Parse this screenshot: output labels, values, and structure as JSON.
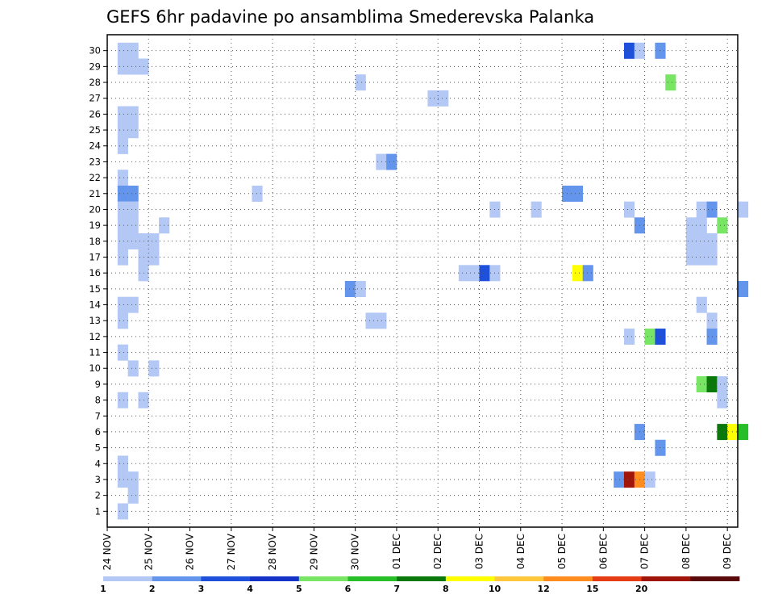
{
  "title": "GEFS 6hr padavine po ansamblima Smederevska Palanka",
  "chart_data": {
    "type": "heatmap",
    "title": "GEFS 6hr padavine po ansamblima Smederevska Palanka",
    "x_ticks": [
      "24 NOV",
      "25 NOV",
      "26 NOV",
      "27 NOV",
      "28 NOV",
      "29 NOV",
      "30 NOV",
      "01 DEC",
      "02 DEC",
      "03 DEC",
      "04 DEC",
      "05 DEC",
      "06 DEC",
      "07 DEC",
      "08 DEC",
      "09 DEC"
    ],
    "y_ticks": [
      "1",
      "2",
      "3",
      "4",
      "5",
      "6",
      "7",
      "8",
      "9",
      "10",
      "11",
      "12",
      "13",
      "14",
      "15",
      "16",
      "17",
      "18",
      "19",
      "20",
      "21",
      "22",
      "23",
      "24",
      "25",
      "26",
      "27",
      "28",
      "29",
      "30"
    ],
    "time_step_hours": 6,
    "x_range_days": [
      0,
      15.25
    ],
    "y_range": [
      0,
      31
    ],
    "grid": "dotted",
    "colorbar": {
      "levels": [
        "1",
        "2",
        "3",
        "4",
        "5",
        "6",
        "7",
        "8",
        "10",
        "12",
        "15",
        "20"
      ],
      "colors": [
        "#b4c8f5",
        "#6495ed",
        "#1e50dc",
        "#1432c8",
        "#78e664",
        "#28be28",
        "#0a780a",
        "#ffff00",
        "#ffc83c",
        "#ff8c1e",
        "#e63c14",
        "#a0140a",
        "#5a0a0a"
      ]
    },
    "cells": [
      {
        "m": 30,
        "d": 0.25,
        "c": 0
      },
      {
        "m": 30,
        "d": 0.5,
        "c": 0
      },
      {
        "m": 30,
        "d": 12.5,
        "c": 2
      },
      {
        "m": 30,
        "d": 12.75,
        "c": 0
      },
      {
        "m": 30,
        "d": 13.25,
        "c": 1
      },
      {
        "m": 29,
        "d": 0.25,
        "c": 0
      },
      {
        "m": 29,
        "d": 0.5,
        "c": 0
      },
      {
        "m": 29,
        "d": 0.75,
        "c": 0
      },
      {
        "m": 28,
        "d": 6,
        "c": 0
      },
      {
        "m": 28,
        "d": 13.5,
        "c": 4
      },
      {
        "m": 27,
        "d": 7.75,
        "c": 0
      },
      {
        "m": 27,
        "d": 8,
        "c": 0
      },
      {
        "m": 26,
        "d": 0.25,
        "c": 0
      },
      {
        "m": 26,
        "d": 0.5,
        "c": 0
      },
      {
        "m": 25,
        "d": 0.25,
        "c": 0
      },
      {
        "m": 25,
        "d": 0.5,
        "c": 0
      },
      {
        "m": 24,
        "d": 0.25,
        "c": 0
      },
      {
        "m": 23,
        "d": 6.5,
        "c": 0
      },
      {
        "m": 23,
        "d": 6.75,
        "c": 1
      },
      {
        "m": 22,
        "d": 0.25,
        "c": 0
      },
      {
        "m": 21,
        "d": 0.25,
        "c": 1
      },
      {
        "m": 21,
        "d": 0.5,
        "c": 1
      },
      {
        "m": 21,
        "d": 3.5,
        "c": 0
      },
      {
        "m": 21,
        "d": 11,
        "c": 1
      },
      {
        "m": 21,
        "d": 11.25,
        "c": 1
      },
      {
        "m": 20,
        "d": 0.25,
        "c": 0
      },
      {
        "m": 20,
        "d": 0.5,
        "c": 0
      },
      {
        "m": 20,
        "d": 9.25,
        "c": 0
      },
      {
        "m": 20,
        "d": 10.25,
        "c": 0
      },
      {
        "m": 20,
        "d": 12.5,
        "c": 0
      },
      {
        "m": 20,
        "d": 14.25,
        "c": 0
      },
      {
        "m": 20,
        "d": 14.5,
        "c": 1
      },
      {
        "m": 20,
        "d": 15.25,
        "c": 0
      },
      {
        "m": 19,
        "d": 0.25,
        "c": 0
      },
      {
        "m": 19,
        "d": 0.5,
        "c": 0
      },
      {
        "m": 19,
        "d": 1.25,
        "c": 0
      },
      {
        "m": 19,
        "d": 12.75,
        "c": 1
      },
      {
        "m": 19,
        "d": 14,
        "c": 0
      },
      {
        "m": 19,
        "d": 14.25,
        "c": 0
      },
      {
        "m": 19,
        "d": 14.75,
        "c": 4
      },
      {
        "m": 18,
        "d": 0.25,
        "c": 0
      },
      {
        "m": 18,
        "d": 0.5,
        "c": 0
      },
      {
        "m": 18,
        "d": 0.75,
        "c": 0
      },
      {
        "m": 18,
        "d": 1,
        "c": 0
      },
      {
        "m": 18,
        "d": 14,
        "c": 0
      },
      {
        "m": 18,
        "d": 14.25,
        "c": 0
      },
      {
        "m": 18,
        "d": 14.5,
        "c": 0
      },
      {
        "m": 17,
        "d": 0.25,
        "c": 0
      },
      {
        "m": 17,
        "d": 0.75,
        "c": 0
      },
      {
        "m": 17,
        "d": 1,
        "c": 0
      },
      {
        "m": 17,
        "d": 14,
        "c": 0
      },
      {
        "m": 17,
        "d": 14.25,
        "c": 0
      },
      {
        "m": 17,
        "d": 14.5,
        "c": 0
      },
      {
        "m": 16,
        "d": 0.75,
        "c": 0
      },
      {
        "m": 16,
        "d": 8.5,
        "c": 0
      },
      {
        "m": 16,
        "d": 8.75,
        "c": 0
      },
      {
        "m": 16,
        "d": 9,
        "c": 2
      },
      {
        "m": 16,
        "d": 9.25,
        "c": 0
      },
      {
        "m": 16,
        "d": 11.25,
        "c": 7
      },
      {
        "m": 16,
        "d": 11.5,
        "c": 1
      },
      {
        "m": 15,
        "d": 5.75,
        "c": 1
      },
      {
        "m": 15,
        "d": 6,
        "c": 0
      },
      {
        "m": 15,
        "d": 15.25,
        "c": 1
      },
      {
        "m": 14,
        "d": 0.25,
        "c": 0
      },
      {
        "m": 14,
        "d": 0.5,
        "c": 0
      },
      {
        "m": 14,
        "d": 14.25,
        "c": 0
      },
      {
        "m": 13,
        "d": 0.25,
        "c": 0
      },
      {
        "m": 13,
        "d": 6.25,
        "c": 0
      },
      {
        "m": 13,
        "d": 6.5,
        "c": 0
      },
      {
        "m": 13,
        "d": 14.5,
        "c": 0
      },
      {
        "m": 12,
        "d": 12.5,
        "c": 0
      },
      {
        "m": 12,
        "d": 13,
        "c": 4
      },
      {
        "m": 12,
        "d": 13.25,
        "c": 2
      },
      {
        "m": 12,
        "d": 14.5,
        "c": 1
      },
      {
        "m": 11,
        "d": 0.25,
        "c": 0
      },
      {
        "m": 10,
        "d": 0.5,
        "c": 0
      },
      {
        "m": 10,
        "d": 1,
        "c": 0
      },
      {
        "m": 9,
        "d": 14.25,
        "c": 4
      },
      {
        "m": 9,
        "d": 14.5,
        "c": 6
      },
      {
        "m": 9,
        "d": 14.75,
        "c": 0
      },
      {
        "m": 8,
        "d": 0.25,
        "c": 0
      },
      {
        "m": 8,
        "d": 0.75,
        "c": 0
      },
      {
        "m": 8,
        "d": 14.75,
        "c": 0
      },
      {
        "m": 6,
        "d": 12.75,
        "c": 1
      },
      {
        "m": 6,
        "d": 14.75,
        "c": 6
      },
      {
        "m": 6,
        "d": 15,
        "c": 7
      },
      {
        "m": 6,
        "d": 15.25,
        "c": 5
      },
      {
        "m": 5,
        "d": 13.25,
        "c": 1
      },
      {
        "m": 4,
        "d": 0.25,
        "c": 0
      },
      {
        "m": 3,
        "d": 0.25,
        "c": 0
      },
      {
        "m": 3,
        "d": 0.5,
        "c": 0
      },
      {
        "m": 3,
        "d": 12.25,
        "c": 1
      },
      {
        "m": 3,
        "d": 12.5,
        "c": 11
      },
      {
        "m": 3,
        "d": 12.75,
        "c": 9
      },
      {
        "m": 3,
        "d": 13,
        "c": 0
      },
      {
        "m": 2,
        "d": 0.5,
        "c": 0
      },
      {
        "m": 1,
        "d": 0.25,
        "c": 0
      }
    ]
  }
}
